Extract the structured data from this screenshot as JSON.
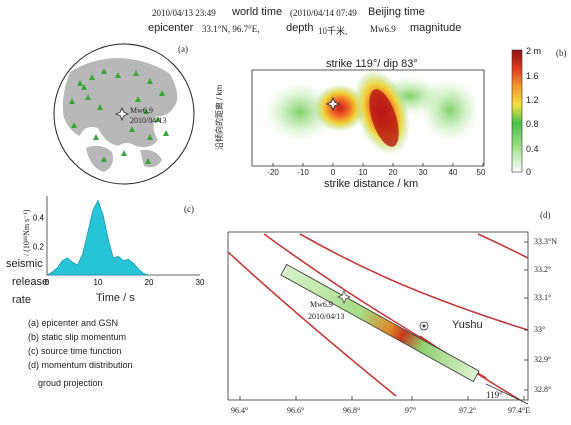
{
  "header": {
    "world_time_value": "2010/04/13 23:49",
    "world_time_label": "world time",
    "beijing_time_value": "(2010/04/14 07:49",
    "beijing_time_label": "Beijing time",
    "epicenter_label": "epicenter",
    "epicenter_value": "33.1°N, 96.7°E,",
    "depth_label": "depth",
    "depth_value": "10千米,",
    "magnitude_value": "Mw6.9",
    "magnitude_label": "magnitude"
  },
  "panel_a": {
    "tag": "(a)",
    "event_label_1": "Mw6.9",
    "event_label_2": "2010/04/13"
  },
  "panel_b": {
    "tag": "(b)",
    "title": "strike 119°/ dip 83°",
    "ylabel": "沿倾向的距离 / km",
    "xlabel": "strike distance / km",
    "colorbar_ticks": [
      "2 m",
      "1.6",
      "1.2",
      "0.8",
      "0.4",
      "0"
    ]
  },
  "panel_c": {
    "tag": "(c)",
    "ylabel": "/ (10¹⁸Nm s⁻¹)",
    "xlabel": "Time / s",
    "side_label_1": "seismic",
    "side_label_2": "release",
    "side_label_3": "rate"
  },
  "panel_d": {
    "tag": "(d)",
    "event_label_1": "Mw6.9",
    "event_label_2": "2010/04/13",
    "city": "Yushu",
    "strike_label": "119°",
    "lat_ticks": [
      "33.3°N",
      "33.2°",
      "33.1°",
      "33°",
      "32.9°",
      "32.8°"
    ],
    "lon_ticks": [
      "96.4°",
      "96.6°",
      "96.8°",
      "97°",
      "97.2°",
      "97.4°E"
    ]
  },
  "legend": {
    "items": [
      "(a) epicenter and GSN",
      "(b) static slip momentum",
      "(c) source time function",
      "(d) momentum distribution",
      "groud projection"
    ]
  },
  "chart_data": [
    {
      "type": "heatmap",
      "title": "strike 119°/ dip 83°",
      "xlabel": "strike distance / km",
      "ylabel": "沿倾向的距离 / km",
      "xlim": [
        -25,
        55
      ],
      "x_ticks": [
        -20,
        -10,
        0,
        10,
        20,
        30,
        40,
        50
      ],
      "colorbar": {
        "min": 0,
        "max": 2,
        "unit": "m",
        "ticks": [
          0,
          0.4,
          0.8,
          1.2,
          1.6,
          2
        ]
      }
    },
    {
      "type": "area",
      "xlabel": "Time / s",
      "ylabel": "/ (10¹⁸Nm s⁻¹)",
      "xlim": [
        0,
        30
      ],
      "ylim": [
        0,
        0.55
      ],
      "x_ticks": [
        0,
        10,
        20,
        30
      ],
      "y_ticks": [
        0.2,
        0.4
      ],
      "x": [
        0,
        1,
        2,
        3,
        4,
        5,
        6,
        7,
        8,
        9,
        10,
        11,
        12,
        13,
        14,
        15,
        16,
        17,
        18,
        19,
        20
      ],
      "values": [
        0,
        0.02,
        0.05,
        0.1,
        0.12,
        0.09,
        0.07,
        0.15,
        0.3,
        0.45,
        0.52,
        0.42,
        0.25,
        0.12,
        0.13,
        0.1,
        0.11,
        0.08,
        0.04,
        0.01,
        0
      ]
    }
  ]
}
